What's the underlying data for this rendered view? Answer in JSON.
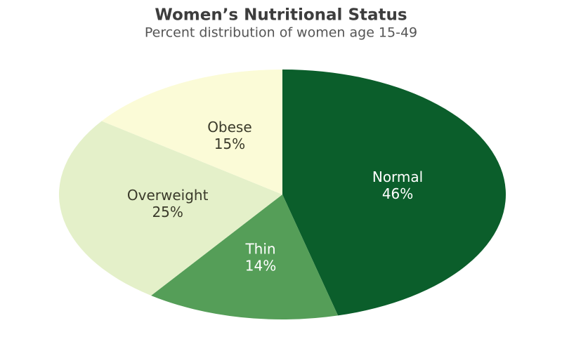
{
  "chart_data": {
    "type": "pie",
    "title": "Women’s Nutritional Status",
    "subtitle": "Percent distribution of women age 15-49",
    "categories": [
      "Normal",
      "Thin",
      "Overweight",
      "Obese"
    ],
    "values": [
      46,
      14,
      25,
      15
    ],
    "value_labels": [
      "46%",
      "14%",
      "25%",
      "15%"
    ],
    "colors": [
      "#0b5e2b",
      "#559e58",
      "#e4f0c9",
      "#fbfbd7"
    ]
  }
}
